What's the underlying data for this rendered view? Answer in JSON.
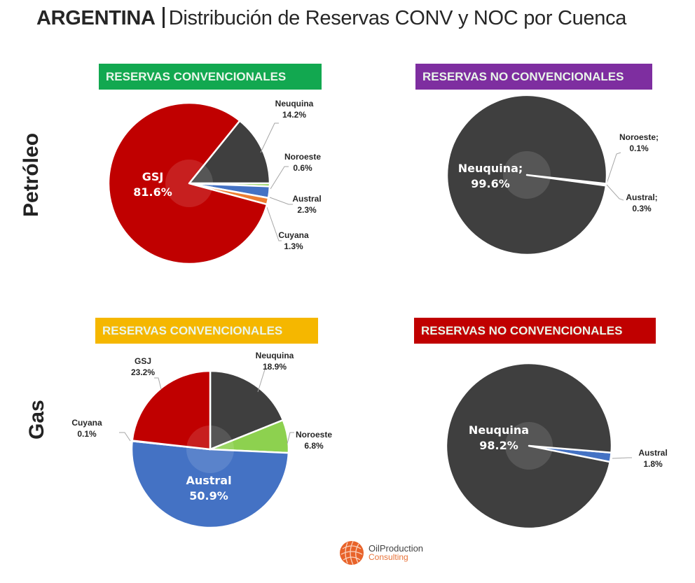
{
  "title": {
    "country": "ARGENTINA",
    "subtitle": "Distribución de Reservas CONV y NOC por Cuenca"
  },
  "row_labels": {
    "oil": "Petróleo",
    "gas": "Gas"
  },
  "banners": {
    "oil_conv": {
      "text": "RESERVAS CONVENCIONALES",
      "color": "#12a850"
    },
    "oil_noc": {
      "text": "RESERVAS NO CONVENCIONALES",
      "color": "#7e2ea0"
    },
    "gas_conv": {
      "text": "RESERVAS CONVENCIONALES",
      "color": "#f5b700"
    },
    "gas_noc": {
      "text": "RESERVAS NO CONVENCIONALES",
      "color": "#c00000"
    }
  },
  "colors": {
    "Neuquina": "#3f3f3f",
    "Noroeste": "#8dd14f",
    "Austral": "#4472c4",
    "Cuyana": "#ed7d31",
    "GSJ": "#c00000"
  },
  "logo": {
    "line1": "OilProduction",
    "line2": "Consulting"
  },
  "chart_data": [
    {
      "type": "pie",
      "title": "Petróleo - RESERVAS CONVENCIONALES",
      "unit": "%",
      "slices": [
        {
          "name": "Neuquina",
          "value": 14.2,
          "label": "Neuquina",
          "pct": "14.2%"
        },
        {
          "name": "Noroeste",
          "value": 0.6,
          "label": "Noroeste",
          "pct": "0.6%"
        },
        {
          "name": "Austral",
          "value": 2.3,
          "label": "Austral",
          "pct": "2.3%"
        },
        {
          "name": "Cuyana",
          "value": 1.3,
          "label": "Cuyana",
          "pct": "1.3%"
        },
        {
          "name": "GSJ",
          "value": 81.6,
          "label": "GSJ",
          "pct": "81.6%"
        }
      ]
    },
    {
      "type": "pie",
      "title": "Petróleo - RESERVAS NO CONVENCIONALES",
      "unit": "%",
      "slices": [
        {
          "name": "Noroeste",
          "value": 0.1,
          "label": "Noroeste;",
          "pct": "0.1%"
        },
        {
          "name": "Austral",
          "value": 0.3,
          "label": "Austral;",
          "pct": "0.3%"
        },
        {
          "name": "Neuquina",
          "value": 99.6,
          "label": "Neuquina;",
          "pct": "99.6%"
        }
      ]
    },
    {
      "type": "pie",
      "title": "Gas - RESERVAS CONVENCIONALES",
      "unit": "%",
      "slices": [
        {
          "name": "Neuquina",
          "value": 18.9,
          "label": "Neuquina",
          "pct": "18.9%"
        },
        {
          "name": "Noroeste",
          "value": 6.8,
          "label": "Noroeste",
          "pct": "6.8%"
        },
        {
          "name": "Austral",
          "value": 50.9,
          "label": "Austral",
          "pct": "50.9%"
        },
        {
          "name": "Cuyana",
          "value": 0.1,
          "label": "Cuyana",
          "pct": "0.1%"
        },
        {
          "name": "GSJ",
          "value": 23.2,
          "label": "GSJ",
          "pct": "23.2%"
        }
      ]
    },
    {
      "type": "pie",
      "title": "Gas - RESERVAS NO CONVENCIONALES",
      "unit": "%",
      "slices": [
        {
          "name": "Austral",
          "value": 1.8,
          "label": "Austral",
          "pct": "1.8%"
        },
        {
          "name": "Neuquina",
          "value": 98.2,
          "label": "Neuquina",
          "pct": "98.2%"
        }
      ]
    }
  ]
}
